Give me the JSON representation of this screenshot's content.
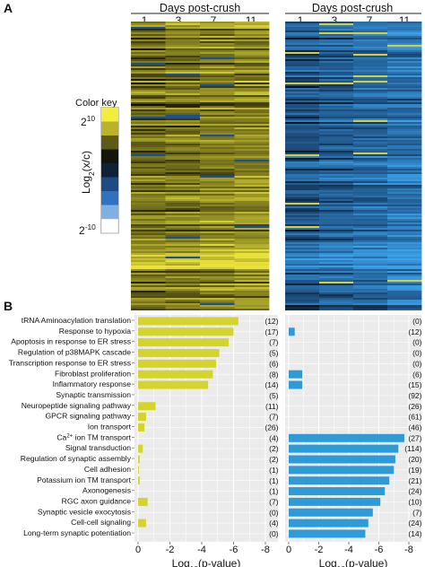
{
  "figure": {
    "panel_a_label": "A",
    "panel_b_label": "B"
  },
  "heatmap": {
    "header": "Days post-crush",
    "days": [
      "1",
      "3",
      "7",
      "11"
    ],
    "left_colors": {
      "high": "#e8e23a",
      "mid": "#6e6a1a",
      "low": "#0b0b06",
      "neg": "#1c4f9a"
    },
    "right_colors": {
      "high": "#3aa0e8",
      "mid": "#1e4f80",
      "low": "#070b10",
      "pos": "#d6cf3a"
    }
  },
  "color_key": {
    "title": "Color key",
    "top_label": "2",
    "top_sup": "10",
    "bottom_label": "2",
    "bottom_sup": "-10",
    "axis_label_pre": "Log",
    "axis_label_sub": "2",
    "axis_label_post": "(x/c)",
    "swatches": [
      "#f2ec3c",
      "#b9b22a",
      "#5e5a18",
      "#15150c",
      "#0f2238",
      "#1d4b85",
      "#2f72c0",
      "#7fb0e4",
      "#ffffff"
    ]
  },
  "chart_data": {
    "type": "bar",
    "categories": [
      "tRNA Aminoacylation translation",
      "Response to hypoxia",
      "Apoptosis in response to ER stress",
      "Regulation of p38MAPK cascade",
      "Transcription response to ER stress",
      "Fibroblast proliferation",
      "Inflammatory response",
      "Synaptic transmission",
      "Neuropeptide signaling pathway",
      "GPCR signaling pathway",
      "Ion transport",
      "Ca2+ ion TM transport",
      "Signal transduction",
      "Regulation of synaptic assembly",
      "Cell adhesion",
      "Potassium ion TM transport",
      "Axonogenesis",
      "RGC axon guidance",
      "Synaptic vesicle exocytosis",
      "Cell-cell signaling",
      "Long-term synaptic potentiation"
    ],
    "xlabel_pre": "Log",
    "xlabel_sub": "10",
    "xlabel_post": "(p-value)",
    "xlim": [
      0,
      -8
    ],
    "xticks": [
      "0",
      "-2",
      "-4",
      "-6",
      "-8"
    ],
    "grid": true,
    "series": [
      {
        "color": "#d4d42c",
        "values": [
          -6.3,
          -6.0,
          -5.7,
          -5.1,
          -4.9,
          -4.7,
          -4.4,
          0,
          -1.1,
          -0.5,
          -0.4,
          0,
          -0.3,
          -0.1,
          -0.05,
          -0.1,
          0,
          -0.6,
          0,
          -0.5,
          0
        ],
        "counts": [
          "(12)",
          "(17)",
          "(7)",
          "(5)",
          "(6)",
          "(8)",
          "(14)",
          "(5)",
          "(11)",
          "(7)",
          "(26)",
          "(4)",
          "(2)",
          "(2)",
          "(1)",
          "(1)",
          "(1)",
          "(7)",
          "(0)",
          "(4)",
          "(0)"
        ]
      },
      {
        "color": "#2e9bd9",
        "values": [
          0,
          -0.4,
          0,
          0,
          0,
          -0.9,
          -0.9,
          0,
          0,
          0,
          0,
          -7.7,
          -7.3,
          -7.1,
          -7.0,
          -6.7,
          -6.4,
          -6.1,
          -5.6,
          -5.3,
          -5.1
        ],
        "counts": [
          "(0)",
          "(12)",
          "(0)",
          "(0)",
          "(0)",
          "(6)",
          "(15)",
          "(92)",
          "(26)",
          "(61)",
          "(46)",
          "(27)",
          "(114)",
          "(20)",
          "(19)",
          "(21)",
          "(24)",
          "(10)",
          "(7)",
          "(24)",
          "(14)"
        ]
      }
    ]
  }
}
